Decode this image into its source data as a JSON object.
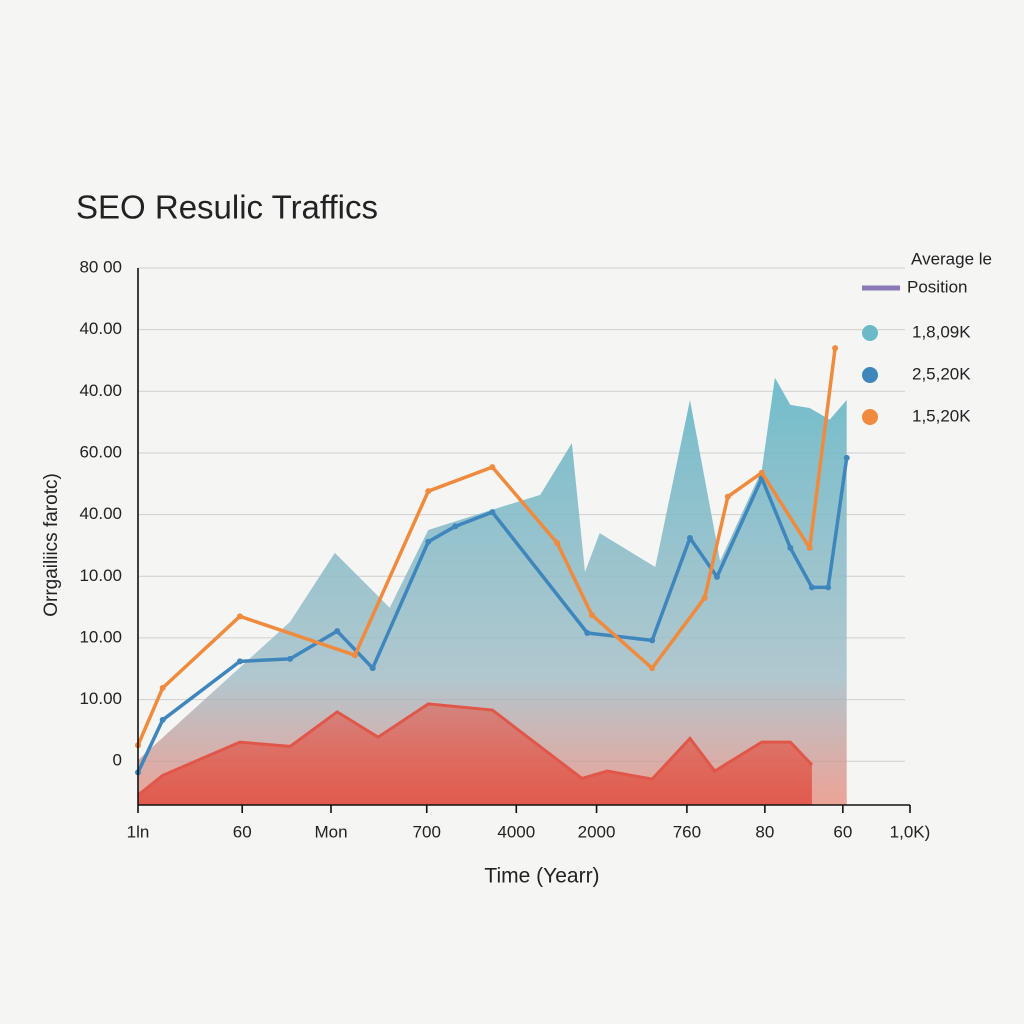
{
  "chart_data": {
    "type": "line",
    "title": "SEO Resulic Traffics",
    "x_label": "Time (Yearr)",
    "y_label": "Orrgailiics farotc)",
    "legend_title": [
      "Average le",
      "Position"
    ],
    "xlim": [
      0,
      10
    ],
    "xticks": [
      {
        "value": 0,
        "label": "1ln"
      },
      {
        "value": 1.35,
        "label": "60"
      },
      {
        "value": 2.5,
        "label": "Mon"
      },
      {
        "value": 3.74,
        "label": "700"
      },
      {
        "value": 4.9,
        "label": "4000"
      },
      {
        "value": 5.94,
        "label": "2000"
      },
      {
        "value": 7.11,
        "label": "760"
      },
      {
        "value": 8.12,
        "label": "80"
      },
      {
        "value": 9.13,
        "label": "60"
      },
      {
        "value": 10,
        "label": "1,0K)"
      }
    ],
    "ylim": [
      -0.71,
      8
    ],
    "yticks": [
      0,
      {
        "value": 1,
        "label": "10.00"
      },
      {
        "value": 2,
        "label": "10.00"
      },
      {
        "value": 3,
        "label": "10.00"
      },
      {
        "value": 4,
        "label": "40.00"
      },
      {
        "value": 5,
        "label": "60.00"
      },
      {
        "value": 6,
        "label": "40.00"
      },
      {
        "value": 7,
        "label": "40.00"
      },
      {
        "value": 8,
        "label": "80 00"
      }
    ],
    "grid": true,
    "series": [
      {
        "name": "1,8,09K",
        "color": "#6bbac8",
        "kind": "area",
        "x": [
          0,
          1.97,
          2.55,
          3.26,
          3.76,
          4.59,
          5.21,
          5.62,
          5.79,
          5.98,
          6.7,
          7.15,
          7.54,
          8.08,
          8.25,
          8.45,
          8.7,
          8.96,
          9.18
        ],
        "values": [
          0.02,
          2.26,
          3.38,
          2.49,
          3.75,
          4.08,
          4.32,
          5.16,
          3.07,
          3.7,
          3.15,
          5.86,
          3.25,
          4.72,
          6.22,
          5.78,
          5.73,
          5.54,
          5.86
        ]
      },
      {
        "name": "2,5,20K",
        "color": "#3f86bd",
        "kind": "line",
        "x": [
          0,
          0.32,
          1.32,
          1.97,
          2.58,
          3.04,
          3.76,
          4.11,
          4.59,
          5.82,
          6.66,
          7.15,
          7.5,
          8.08,
          8.45,
          8.73,
          8.94,
          9.18
        ],
        "values": [
          -0.18,
          0.67,
          1.62,
          1.66,
          2.11,
          1.51,
          3.56,
          3.81,
          4.04,
          2.08,
          1.96,
          3.62,
          2.99,
          4.59,
          3.46,
          2.82,
          2.82,
          4.92
        ]
      },
      {
        "name": "1,5,20K",
        "color": "#f08a3c",
        "kind": "line",
        "x": [
          0,
          0.32,
          1.32,
          2.81,
          3.76,
          4.59,
          5.43,
          5.88,
          6.66,
          7.34,
          7.64,
          8.08,
          8.7,
          9.03
        ],
        "values": [
          0.26,
          1.19,
          2.35,
          1.72,
          4.38,
          4.77,
          3.54,
          2.37,
          1.51,
          2.65,
          4.29,
          4.68,
          3.46,
          6.7
        ]
      },
      {
        "color": "#e0574a",
        "kind": "filled-line",
        "x": [
          0,
          0.32,
          1.32,
          1.97,
          2.58,
          3.11,
          3.76,
          4.59,
          5.75,
          6.08,
          6.66,
          7.15,
          7.47,
          8.08,
          8.45,
          8.73
        ],
        "values": [
          -0.55,
          -0.23,
          0.31,
          0.24,
          0.8,
          0.39,
          0.93,
          0.83,
          -0.28,
          -0.16,
          -0.29,
          0.37,
          -0.16,
          0.31,
          0.31,
          -0.06
        ]
      }
    ]
  }
}
